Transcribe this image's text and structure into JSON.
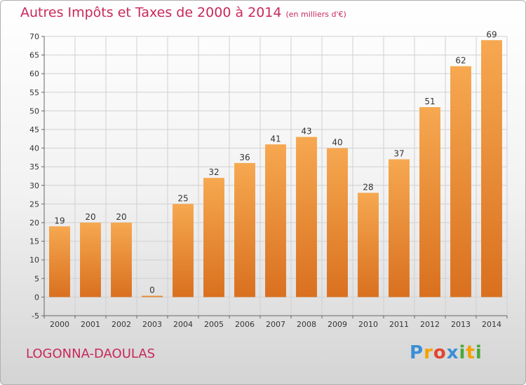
{
  "header": {
    "title": "Autres Impôts et Taxes de 2000 à 2014",
    "unit": "(en milliers d'€)"
  },
  "footer": {
    "commune": "LOGONNA-DAOULAS",
    "logo_letters": [
      "P",
      "r",
      "o",
      "x",
      "i",
      "t",
      "i"
    ],
    "logo_colors": [
      "#3a8fd6",
      "#f2a200",
      "#e2452f",
      "#3a8fd6",
      "#4aa83c",
      "#f2a200",
      "#4aa83c"
    ]
  },
  "colors": {
    "bar_light": "#f6a850",
    "bar_dark": "#d9701f",
    "grid": "#d0d0d0"
  },
  "chart_data": {
    "type": "bar",
    "title": "Autres Impôts et Taxes de 2000 à 2014",
    "categories": [
      "2000",
      "2001",
      "2002",
      "2003",
      "2004",
      "2005",
      "2006",
      "2007",
      "2008",
      "2009",
      "2010",
      "2011",
      "2012",
      "2013",
      "2014"
    ],
    "values": [
      19,
      20,
      20,
      0,
      25,
      32,
      36,
      41,
      43,
      40,
      28,
      37,
      51,
      62,
      69
    ],
    "ylim": [
      -5,
      70
    ],
    "yticks": [
      -5,
      0,
      5,
      10,
      15,
      20,
      25,
      30,
      35,
      40,
      45,
      50,
      55,
      60,
      65,
      70
    ],
    "grid": true,
    "legend": "none"
  }
}
